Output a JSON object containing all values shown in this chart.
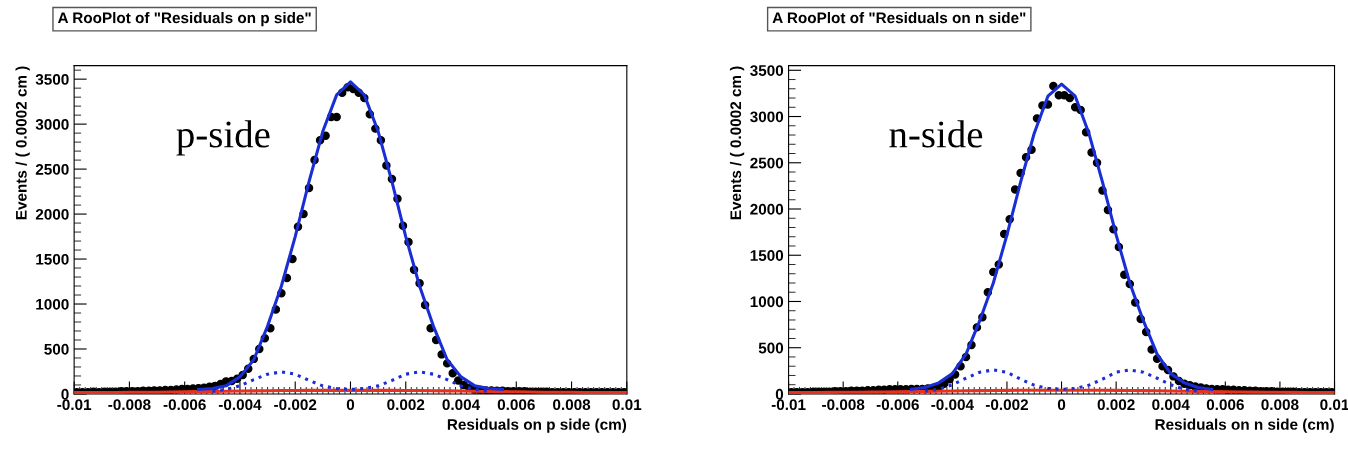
{
  "chart_data": [
    {
      "type": "scatter",
      "title": "A RooPlot of \"Residuals on p side\"",
      "xlabel": "Residuals on p side (cm)",
      "ylabel": "Events / ( 0.0002 cm )",
      "annotations": [
        "p-side"
      ],
      "xlim": [
        -0.01,
        0.01
      ],
      "xticks": [
        -0.01,
        -0.008,
        -0.006,
        -0.004,
        -0.002,
        0,
        0.002,
        0.004,
        0.006,
        0.008,
        0.01
      ],
      "ylim": [
        0,
        3650
      ],
      "yticks": [
        0,
        500,
        1000,
        1500,
        2000,
        2500,
        3000,
        3500
      ],
      "grid": false,
      "legend": false,
      "series": [
        {
          "type": "line",
          "color": "#e8321e",
          "line_style": "solid",
          "marker": "none",
          "x": [
            -0.01,
            -0.0095,
            -0.009,
            -0.0085,
            -0.008,
            -0.0075,
            -0.007,
            -0.0065,
            -0.006,
            -0.0055,
            -0.005,
            -0.0045,
            -0.004,
            -0.0035,
            -0.003,
            -0.0025,
            -0.002,
            -0.0015,
            -0.001,
            -0.0005,
            0,
            0.0005,
            0.001,
            0.0015,
            0.002,
            0.0025,
            0.003,
            0.0035,
            0.004,
            0.0045,
            0.005,
            0.0055,
            0.006,
            0.0065,
            0.007,
            0.0075,
            0.008,
            0.0085,
            0.009,
            0.0095,
            0.01
          ],
          "values": [
            15,
            15,
            16,
            17,
            18,
            19,
            20,
            22,
            24,
            26,
            28,
            30,
            32,
            34,
            36,
            38,
            39,
            40,
            40,
            40,
            40,
            40,
            40,
            40,
            39,
            38,
            36,
            34,
            32,
            30,
            28,
            26,
            24,
            22,
            20,
            19,
            18,
            17,
            16,
            15,
            15
          ]
        },
        {
          "type": "line",
          "color": "#1a2ed6",
          "line_style": "dotted",
          "marker": "none",
          "x": [
            -0.005,
            -0.0045,
            -0.004,
            -0.0035,
            -0.003,
            -0.0025,
            -0.002,
            -0.0015,
            -0.001,
            -0.0005,
            0,
            0.0005,
            0.001,
            0.0015,
            0.002,
            0.0025,
            0.003,
            0.0035,
            0.004,
            0.0045,
            0.005
          ],
          "values": [
            30,
            50,
            90,
            160,
            220,
            245,
            220,
            150,
            90,
            60,
            50,
            60,
            90,
            150,
            220,
            245,
            220,
            160,
            90,
            50,
            30
          ]
        },
        {
          "type": "line",
          "color": "#1a2ed6",
          "line_style": "solid",
          "marker": "none",
          "x": [
            -0.0055,
            -0.005,
            -0.0045,
            -0.004,
            -0.0035,
            -0.003,
            -0.0025,
            -0.002,
            -0.0015,
            -0.001,
            -0.0005,
            0,
            0.0005,
            0.001,
            0.0015,
            0.002,
            0.0025,
            0.003,
            0.0035,
            0.004,
            0.0045,
            0.005,
            0.0055
          ],
          "values": [
            50,
            60,
            90,
            190,
            380,
            755,
            1200,
            1750,
            2360,
            2920,
            3325,
            3470,
            3325,
            2920,
            2360,
            1750,
            1200,
            755,
            380,
            190,
            90,
            60,
            50
          ]
        },
        {
          "color": "#000000",
          "marker": "circle",
          "x": [
            -0.0099,
            -0.0097,
            -0.0095,
            -0.0093,
            -0.0091,
            -0.0089,
            -0.0087,
            -0.0085,
            -0.0083,
            -0.0081,
            -0.0079,
            -0.0077,
            -0.0075,
            -0.0073,
            -0.0071,
            -0.0069,
            -0.0067,
            -0.0065,
            -0.0063,
            -0.0061,
            -0.0059,
            -0.0057,
            -0.0055,
            -0.0053,
            -0.0051,
            -0.0049,
            -0.0047,
            -0.0045,
            -0.0043,
            -0.0041,
            -0.0039,
            -0.0037,
            -0.0035,
            -0.0033,
            -0.0031,
            -0.0029,
            -0.0027,
            -0.0025,
            -0.0023,
            -0.0021,
            -0.0019,
            -0.0017,
            -0.0015,
            -0.0013,
            -0.0011,
            -0.0009,
            -0.0007,
            -0.0005,
            -0.0003,
            -0.0001,
            0.0001,
            0.0003,
            0.0005,
            0.0007,
            0.0009,
            0.0011,
            0.0013,
            0.0015,
            0.0017,
            0.0019,
            0.0021,
            0.0023,
            0.0025,
            0.0027,
            0.0029,
            0.0031,
            0.0033,
            0.0035,
            0.0037,
            0.0039,
            0.0041,
            0.0043,
            0.0045,
            0.0047,
            0.0049,
            0.0051,
            0.0053,
            0.0055,
            0.0057,
            0.0059,
            0.0061,
            0.0063,
            0.0065,
            0.0067,
            0.0069,
            0.0071,
            0.0073,
            0.0075,
            0.0077,
            0.0079,
            0.0081,
            0.0083,
            0.0085,
            0.0087,
            0.0089,
            0.0091,
            0.0093,
            0.0095,
            0.0097,
            0.0099
          ],
          "values": [
            20,
            20,
            20,
            25,
            20,
            25,
            25,
            25,
            30,
            30,
            30,
            30,
            35,
            35,
            40,
            40,
            45,
            45,
            50,
            55,
            55,
            60,
            65,
            70,
            80,
            90,
            110,
            140,
            145,
            170,
            210,
            280,
            390,
            500,
            620,
            730,
            940,
            1120,
            1290,
            1500,
            1860,
            2000,
            2290,
            2600,
            2820,
            2870,
            3080,
            3080,
            3350,
            3410,
            3390,
            3350,
            3290,
            3110,
            2950,
            2820,
            2540,
            2390,
            2170,
            1870,
            1690,
            1380,
            1230,
            990,
            730,
            600,
            440,
            340,
            230,
            150,
            100,
            65,
            50,
            45,
            40,
            40,
            35,
            35,
            30,
            30,
            30,
            30,
            25,
            25,
            25,
            25,
            20,
            20,
            20,
            20,
            20,
            20,
            20,
            20,
            20,
            20,
            20,
            20,
            20,
            20
          ]
        }
      ]
    },
    {
      "type": "scatter",
      "title": "A RooPlot of \"Residuals on n side\"",
      "xlabel": "Residuals on n side (cm)",
      "ylabel": "Events / ( 0.0002 cm )",
      "annotations": [
        "n-side"
      ],
      "xlim": [
        -0.01,
        0.01
      ],
      "xticks": [
        -0.01,
        -0.008,
        -0.006,
        -0.004,
        -0.002,
        0,
        0.002,
        0.004,
        0.006,
        0.008,
        0.01
      ],
      "ylim": [
        0,
        3550
      ],
      "yticks": [
        0,
        500,
        1000,
        1500,
        2000,
        2500,
        3000,
        3500
      ],
      "grid": false,
      "legend": false,
      "series": [
        {
          "type": "line",
          "color": "#e8321e",
          "line_style": "solid",
          "marker": "none",
          "x": [
            -0.01,
            -0.0095,
            -0.009,
            -0.0085,
            -0.008,
            -0.0075,
            -0.007,
            -0.0065,
            -0.006,
            -0.0055,
            -0.005,
            -0.0045,
            -0.004,
            -0.0035,
            -0.003,
            -0.0025,
            -0.002,
            -0.0015,
            -0.001,
            -0.0005,
            0,
            0.0005,
            0.001,
            0.0015,
            0.002,
            0.0025,
            0.003,
            0.0035,
            0.004,
            0.0045,
            0.005,
            0.0055,
            0.006,
            0.0065,
            0.007,
            0.0075,
            0.008,
            0.0085,
            0.009,
            0.0095,
            0.01
          ],
          "values": [
            15,
            15,
            16,
            17,
            18,
            19,
            20,
            22,
            24,
            26,
            28,
            30,
            32,
            34,
            36,
            38,
            39,
            40,
            40,
            40,
            40,
            40,
            40,
            40,
            39,
            38,
            36,
            34,
            32,
            30,
            28,
            26,
            24,
            22,
            20,
            19,
            18,
            17,
            16,
            15,
            15
          ]
        },
        {
          "type": "line",
          "color": "#1a2ed6",
          "line_style": "dotted",
          "marker": "none",
          "x": [
            -0.005,
            -0.0045,
            -0.004,
            -0.0035,
            -0.003,
            -0.0025,
            -0.002,
            -0.0015,
            -0.001,
            -0.0005,
            0,
            0.0005,
            0.001,
            0.0015,
            0.002,
            0.0025,
            0.003,
            0.0035,
            0.004,
            0.0045,
            0.005
          ],
          "values": [
            30,
            50,
            100,
            170,
            235,
            260,
            235,
            160,
            95,
            60,
            50,
            60,
            95,
            160,
            235,
            260,
            235,
            170,
            100,
            50,
            30
          ]
        },
        {
          "type": "line",
          "color": "#1a2ed6",
          "line_style": "solid",
          "marker": "none",
          "x": [
            -0.0055,
            -0.005,
            -0.0045,
            -0.004,
            -0.0035,
            -0.003,
            -0.0025,
            -0.002,
            -0.0015,
            -0.001,
            -0.0005,
            0,
            0.0005,
            0.001,
            0.0015,
            0.002,
            0.0025,
            0.003,
            0.0035,
            0.004,
            0.0045,
            0.005,
            0.0055
          ],
          "values": [
            50,
            70,
            120,
            220,
            430,
            790,
            1200,
            1720,
            2290,
            2820,
            3220,
            3350,
            3220,
            2820,
            2290,
            1720,
            1200,
            790,
            430,
            220,
            120,
            70,
            50
          ]
        },
        {
          "color": "#000000",
          "marker": "circle",
          "x": [
            -0.0099,
            -0.0097,
            -0.0095,
            -0.0093,
            -0.0091,
            -0.0089,
            -0.0087,
            -0.0085,
            -0.0083,
            -0.0081,
            -0.0079,
            -0.0077,
            -0.0075,
            -0.0073,
            -0.0071,
            -0.0069,
            -0.0067,
            -0.0065,
            -0.0063,
            -0.0061,
            -0.0059,
            -0.0057,
            -0.0055,
            -0.0053,
            -0.0051,
            -0.0049,
            -0.0047,
            -0.0045,
            -0.0043,
            -0.0041,
            -0.0039,
            -0.0037,
            -0.0035,
            -0.0033,
            -0.0031,
            -0.0029,
            -0.0027,
            -0.0025,
            -0.0023,
            -0.0021,
            -0.0019,
            -0.0017,
            -0.0015,
            -0.0013,
            -0.0011,
            -0.0009,
            -0.0007,
            -0.0005,
            -0.0003,
            -0.0001,
            0.0001,
            0.0003,
            0.0005,
            0.0007,
            0.0009,
            0.0011,
            0.0013,
            0.0015,
            0.0017,
            0.0019,
            0.0021,
            0.0023,
            0.0025,
            0.0027,
            0.0029,
            0.0031,
            0.0033,
            0.0035,
            0.0037,
            0.0039,
            0.0041,
            0.0043,
            0.0045,
            0.0047,
            0.0049,
            0.0051,
            0.0053,
            0.0055,
            0.0057,
            0.0059,
            0.0061,
            0.0063,
            0.0065,
            0.0067,
            0.0069,
            0.0071,
            0.0073,
            0.0075,
            0.0077,
            0.0079,
            0.0081,
            0.0083,
            0.0085,
            0.0087,
            0.0089,
            0.0091,
            0.0093,
            0.0095,
            0.0097,
            0.0099
          ],
          "values": [
            20,
            20,
            20,
            20,
            25,
            25,
            25,
            25,
            30,
            30,
            30,
            35,
            35,
            35,
            40,
            40,
            45,
            45,
            50,
            50,
            50,
            50,
            55,
            55,
            55,
            60,
            65,
            80,
            110,
            160,
            210,
            300,
            400,
            530,
            720,
            830,
            1100,
            1320,
            1400,
            1730,
            1890,
            2210,
            2390,
            2560,
            2640,
            2980,
            3120,
            3130,
            3330,
            3230,
            3230,
            3200,
            3100,
            3070,
            2830,
            2610,
            2500,
            2200,
            1990,
            1780,
            1590,
            1290,
            1190,
            990,
            810,
            670,
            480,
            380,
            300,
            260,
            190,
            140,
            110,
            95,
            80,
            70,
            60,
            55,
            50,
            50,
            45,
            45,
            40,
            40,
            35,
            35,
            30,
            30,
            30,
            25,
            25,
            25,
            25,
            20,
            20,
            20,
            20,
            20,
            20,
            20
          ]
        }
      ]
    }
  ]
}
